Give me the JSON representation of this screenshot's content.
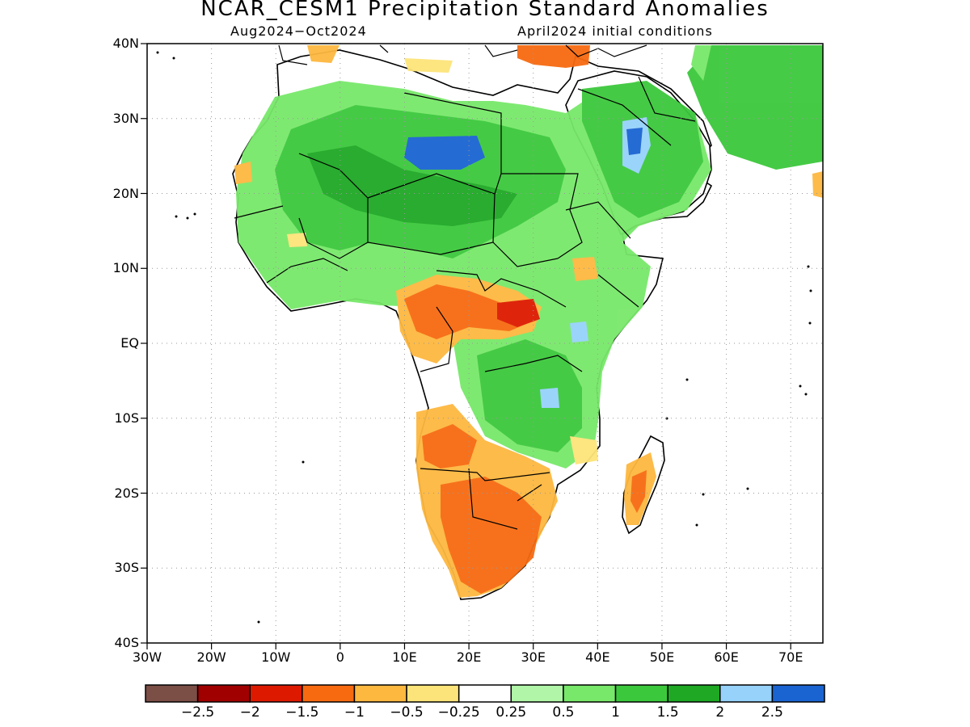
{
  "map": {
    "title": "NCAR_CESM1 Precipitation Standard Anomalies",
    "period": "Aug2024−Oct2024",
    "init": "April2024 initial conditions",
    "lat_labels": [
      "40N",
      "30N",
      "20N",
      "10N",
      "EQ",
      "10S",
      "20S",
      "30S",
      "40S"
    ],
    "lon_labels": [
      "30W",
      "20W",
      "10W",
      "0",
      "10E",
      "20E",
      "30E",
      "40E",
      "50E",
      "60E",
      "70E"
    ],
    "extent": {
      "lon": [
        -30,
        75
      ],
      "lat": [
        -40,
        40
      ]
    },
    "grid": "dotted"
  },
  "legend": {
    "labels": [
      "−2.5",
      "−2",
      "−1.5",
      "−1",
      "−0.5",
      "−0.25",
      "0.25",
      "0.5",
      "1",
      "1.5",
      "2",
      "2.5"
    ],
    "colors": [
      "#7b4e46",
      "#a00000",
      "#dd1a00",
      "#f76a10",
      "#fdb840",
      "#fde47a",
      "#ffffff",
      "#b0f5a8",
      "#78e86a",
      "#3cc83c",
      "#1ea824",
      "#96d2fa",
      "#1a64d2"
    ]
  },
  "colors": {
    "land": "#ffffff",
    "border": "#000000",
    "dark_green": "#1ea824",
    "green": "#3cc83c",
    "light_green": "#78e86a",
    "pale_green": "#b0f5a8",
    "light_blue": "#96d2fa",
    "blue": "#1a64d2",
    "yellow": "#fde47a",
    "light_orange": "#fdb840",
    "orange": "#f76a10",
    "red": "#dd1a00"
  }
}
